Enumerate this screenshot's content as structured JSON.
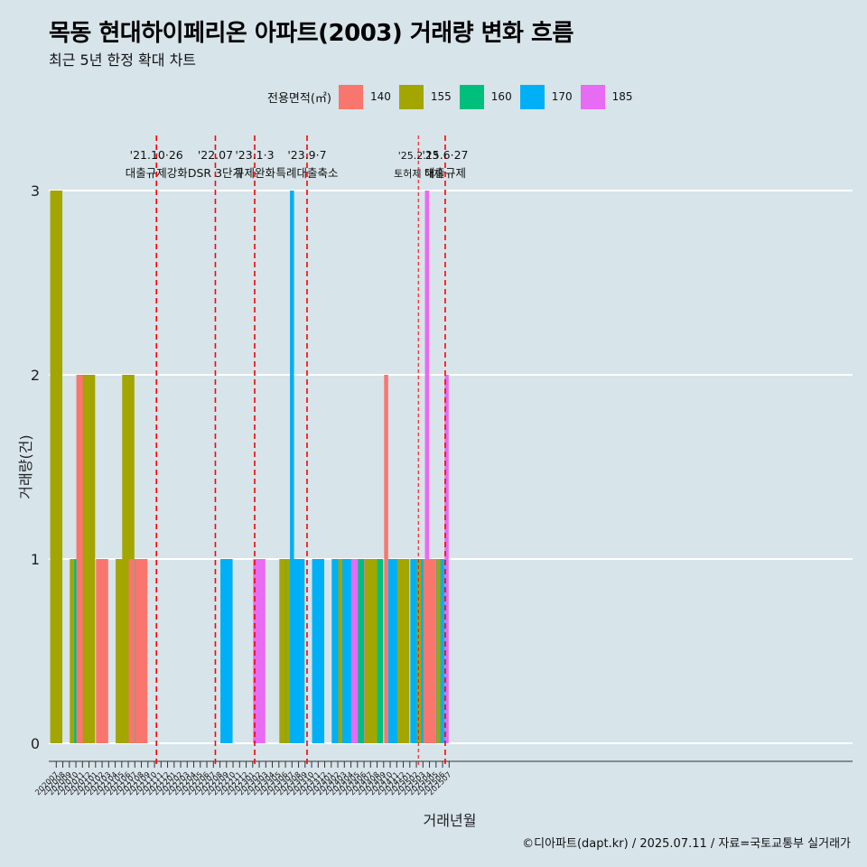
{
  "title": "목동 현대하이페리온 아파트(2003) 거래량 변화 흐름",
  "subtitle": "최근 5년 한정 확대 차트",
  "caption": "©디아파트(dapt.kr) / 2025.07.11 / 자료=국토교통부 실거래가",
  "legend": {
    "title": "전용면적(㎡)",
    "items": [
      {
        "label": "140",
        "color": "#f8766d"
      },
      {
        "label": "155",
        "color": "#a3a500"
      },
      {
        "label": "160",
        "color": "#00bf7d"
      },
      {
        "label": "170",
        "color": "#00b0f6"
      },
      {
        "label": "185",
        "color": "#e76bf3"
      }
    ]
  },
  "chart_data": {
    "type": "bar",
    "xlabel": "거래년월",
    "ylabel": "거래량(건)",
    "ylim": [
      0,
      3
    ],
    "yticks": [
      "0",
      "1",
      "2",
      "3"
    ],
    "categories": [
      "202007",
      "202008",
      "202009",
      "202010",
      "202011",
      "202012",
      "202101",
      "202102",
      "202103",
      "202104",
      "202105",
      "202106",
      "202107",
      "202108",
      "202109",
      "202110",
      "202111",
      "202112",
      "202201",
      "202202",
      "202203",
      "202204",
      "202205",
      "202206",
      "202207",
      "202208",
      "202209",
      "202210",
      "202211",
      "202212",
      "202301",
      "202302",
      "202303",
      "202304",
      "202305",
      "202306",
      "202307",
      "202308",
      "202309",
      "202310",
      "202311",
      "202312",
      "202401",
      "202402",
      "202403",
      "202404",
      "202405",
      "202406",
      "202407",
      "202408",
      "202409",
      "202410",
      "202411",
      "202412",
      "202501",
      "202502",
      "202503",
      "202504",
      "202505",
      "202506",
      "202507"
    ],
    "bars": [
      {
        "month": "202007",
        "series": [
          {
            "area": "155",
            "value": 3
          }
        ]
      },
      {
        "month": "202010",
        "series": [
          {
            "area": "155",
            "value": 1
          },
          {
            "area": "160",
            "value": 1
          },
          {
            "area": "185",
            "value": 1
          }
        ]
      },
      {
        "month": "202011",
        "series": [
          {
            "area": "140",
            "value": 2
          }
        ]
      },
      {
        "month": "202012",
        "series": [
          {
            "area": "155",
            "value": 2
          }
        ]
      },
      {
        "month": "202102",
        "series": [
          {
            "area": "140",
            "value": 1
          }
        ]
      },
      {
        "month": "202105",
        "series": [
          {
            "area": "155",
            "value": 1
          }
        ]
      },
      {
        "month": "202106",
        "series": [
          {
            "area": "155",
            "value": 2
          }
        ]
      },
      {
        "month": "202107",
        "series": [
          {
            "area": "140",
            "value": 1
          },
          {
            "area": "160",
            "value": 1
          }
        ]
      },
      {
        "month": "202108",
        "series": [
          {
            "area": "140",
            "value": 1
          }
        ]
      },
      {
        "month": "202209",
        "series": [
          {
            "area": "170",
            "value": 1
          }
        ]
      },
      {
        "month": "202302",
        "series": [
          {
            "area": "185",
            "value": 1
          }
        ]
      },
      {
        "month": "202306",
        "series": [
          {
            "area": "155",
            "value": 1
          },
          {
            "area": "160",
            "value": 1
          }
        ]
      },
      {
        "month": "202307",
        "series": [
          {
            "area": "155",
            "value": 1
          },
          {
            "area": "170",
            "value": 3
          },
          {
            "area": "185",
            "value": 1
          }
        ]
      },
      {
        "month": "202308",
        "series": [
          {
            "area": "170",
            "value": 1
          }
        ]
      },
      {
        "month": "202311",
        "series": [
          {
            "area": "170",
            "value": 1
          }
        ]
      },
      {
        "month": "202402",
        "series": [
          {
            "area": "170",
            "value": 1
          }
        ]
      },
      {
        "month": "202403",
        "series": [
          {
            "area": "155",
            "value": 1
          },
          {
            "area": "170",
            "value": 1
          },
          {
            "area": "185",
            "value": 1
          }
        ]
      },
      {
        "month": "202404",
        "series": [
          {
            "area": "170",
            "value": 1
          }
        ]
      },
      {
        "month": "202405",
        "series": [
          {
            "area": "185",
            "value": 1
          }
        ]
      },
      {
        "month": "202406",
        "series": [
          {
            "area": "160",
            "value": 1
          },
          {
            "area": "185",
            "value": 1
          }
        ]
      },
      {
        "month": "202407",
        "series": [
          {
            "area": "155",
            "value": 1
          }
        ]
      },
      {
        "month": "202408",
        "series": [
          {
            "area": "155",
            "value": 1
          },
          {
            "area": "160",
            "value": 1
          }
        ]
      },
      {
        "month": "202410",
        "series": [
          {
            "area": "140",
            "value": 2
          },
          {
            "area": "170",
            "value": 1
          },
          {
            "area": "185",
            "value": 1
          }
        ]
      },
      {
        "month": "202411",
        "series": [
          {
            "area": "170",
            "value": 1
          }
        ]
      },
      {
        "month": "202412",
        "series": [
          {
            "area": "155",
            "value": 1
          }
        ]
      },
      {
        "month": "202502",
        "series": [
          {
            "area": "170",
            "value": 1
          }
        ]
      },
      {
        "month": "202503",
        "series": [
          {
            "area": "155",
            "value": 1
          },
          {
            "area": "170",
            "value": 1
          },
          {
            "area": "185",
            "value": 3
          }
        ]
      },
      {
        "month": "202504",
        "series": [
          {
            "area": "140",
            "value": 1
          }
        ]
      },
      {
        "month": "202505",
        "series": [
          {
            "area": "140",
            "value": 1
          },
          {
            "area": "170",
            "value": 1
          }
        ]
      },
      {
        "month": "202506",
        "series": [
          {
            "area": "155",
            "value": 1
          },
          {
            "area": "170",
            "value": 1
          },
          {
            "area": "185",
            "value": 2
          }
        ]
      }
    ],
    "events": [
      {
        "date_index": 15.3,
        "line1": "'21.10·26",
        "line2": "대출규제강화",
        "style": "dashed"
      },
      {
        "date_index": 24.3,
        "line1": "'22.07",
        "line2": "DSR 3단계",
        "style": "dashed"
      },
      {
        "date_index": 30.3,
        "line1": "'23.1·3",
        "line2": "규제완화",
        "style": "dashed"
      },
      {
        "date_index": 38.3,
        "line1": "'23.9·7",
        "line2": "특례대출축소",
        "style": "dashed"
      },
      {
        "date_index": 55.3,
        "line1": "'25.2.13",
        "line2": "토허제 해제",
        "style": "thin"
      },
      {
        "date_index": 59.4,
        "line1": "'25.6·27",
        "line2": "대출규제",
        "style": "dashed"
      }
    ]
  }
}
